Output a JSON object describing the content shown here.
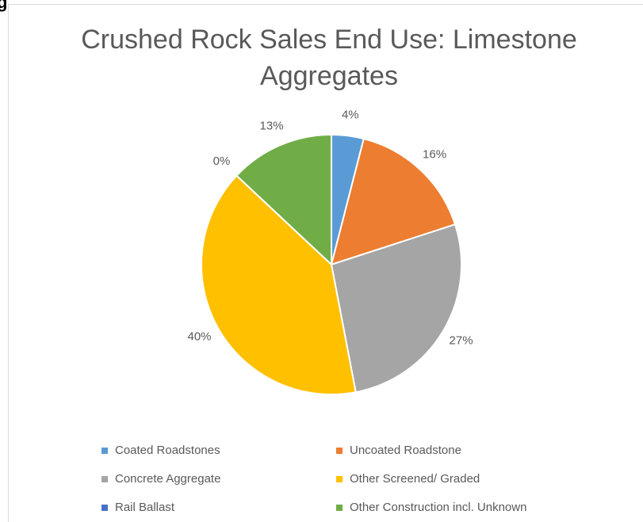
{
  "heading": "g",
  "chart_data": {
    "type": "pie",
    "title": [
      "Crushed Rock Sales End Use: Limestone",
      "Aggregates"
    ],
    "categories": [
      "Coated Roadstones",
      "Uncoated Roadstone",
      "Concrete Aggregate",
      "Other Screened/ Graded",
      "Rail Ballast",
      "Other Construction incl. Unknown"
    ],
    "values": [
      4,
      16,
      27,
      40,
      0,
      13
    ],
    "value_labels": [
      "4%",
      "16%",
      "27%",
      "40%",
      "0%",
      "13%"
    ],
    "colors": [
      "#5b9bd5",
      "#ed7d31",
      "#a5a5a5",
      "#ffc000",
      "#4472c4",
      "#70ad47"
    ],
    "legend": "bottom"
  }
}
